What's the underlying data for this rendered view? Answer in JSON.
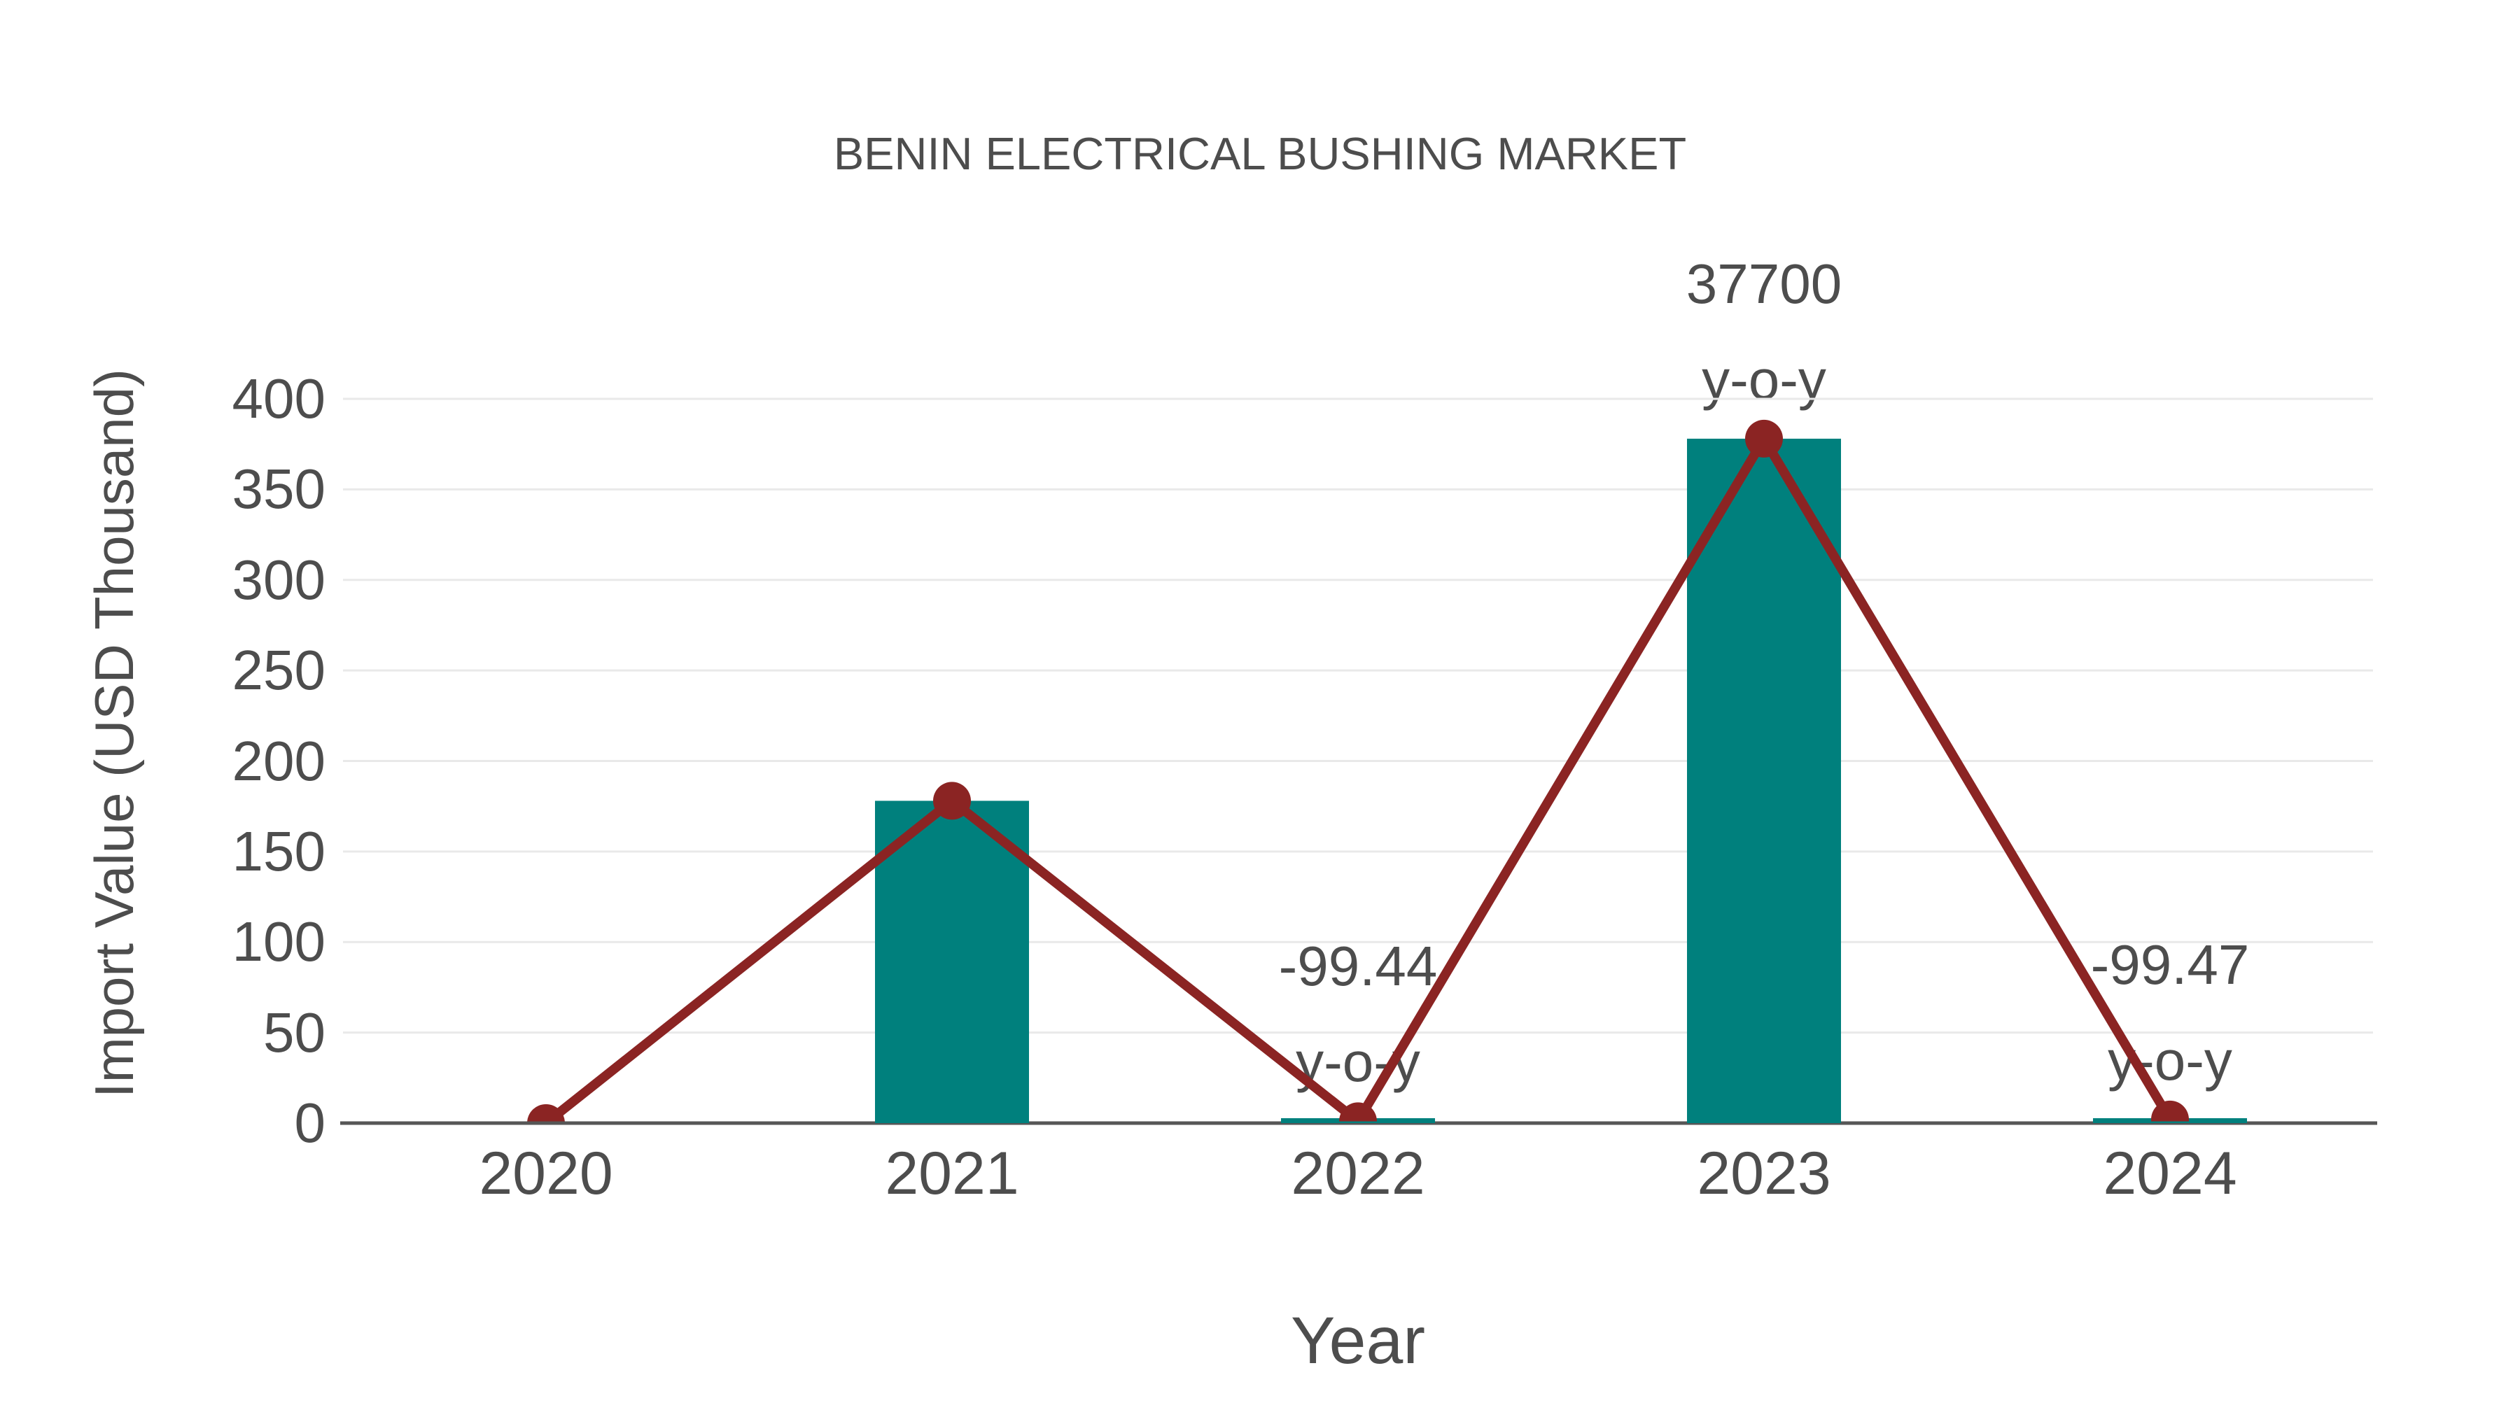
{
  "figure": {
    "background": "#ffffff"
  },
  "chart_data": {
    "type": "bar",
    "overlay_line": true,
    "title": "BENIN ELECTRICAL BUSHING MARKET",
    "xlabel": "Year",
    "ylabel": "Import Value (USD Thousand)",
    "categories": [
      "2020",
      "2021",
      "2022",
      "2023",
      "2024"
    ],
    "series": [
      {
        "name": "Import Value bars",
        "type": "bar",
        "values": [
          0,
          178,
          1,
          378,
          2
        ]
      },
      {
        "name": "Import Value trend line",
        "type": "line",
        "values": [
          0,
          178,
          1,
          378,
          2
        ]
      }
    ],
    "ylim": [
      0,
      400
    ],
    "yticks": [
      0,
      50,
      100,
      150,
      200,
      250,
      300,
      350,
      400
    ],
    "grid": true,
    "legend": false,
    "annotations": [
      {
        "index": 2,
        "lines": [
          "-99.44",
          "y-o-y"
        ]
      },
      {
        "index": 3,
        "lines": [
          "37700",
          "y-o-y"
        ]
      },
      {
        "index": 4,
        "lines": [
          "-99.47",
          "y-o-y"
        ]
      }
    ],
    "colors": {
      "bar": "#00807D",
      "line": "#8B2423",
      "grid": "#e9e9e9",
      "axis": "#565656",
      "text": "#4d4d4d"
    }
  }
}
